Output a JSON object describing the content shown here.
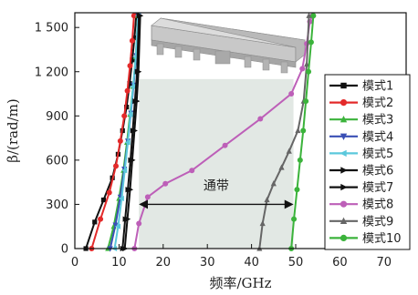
{
  "chart_data": {
    "type": "line",
    "xlabel": "频率/GHz",
    "ylabel": "β/(rad/m)",
    "xlim": [
      0,
      75
    ],
    "ylim": [
      0,
      1600
    ],
    "xticks": [
      0,
      10,
      20,
      30,
      40,
      50,
      60,
      70
    ],
    "yticks": [
      0,
      300,
      600,
      900,
      1200,
      1500
    ],
    "ytick_labels": [
      "0",
      "300",
      "600",
      "900",
      "1 200",
      "1 500"
    ],
    "grid": false,
    "legend_position": "right",
    "bandgap": {
      "x_from": 14.5,
      "x_to": 49.5,
      "y_to": 1150,
      "label": "通带",
      "color": "#e2e8e4"
    },
    "series": [
      {
        "name": "模式1",
        "color": "#111111",
        "marker": "square",
        "x": [
          2.5,
          4.5,
          6.5,
          8.5,
          9.8,
          10.8,
          11.7,
          12.4,
          13.0,
          13.5,
          13.9
        ],
        "y": [
          0,
          180,
          330,
          480,
          640,
          800,
          960,
          1120,
          1280,
          1430,
          1580
        ]
      },
      {
        "name": "模式2",
        "color": "#e32a2a",
        "marker": "circle",
        "x": [
          3.8,
          5.8,
          7.8,
          9.3,
          10.3,
          11.2,
          11.9,
          12.5,
          13.0,
          13.4
        ],
        "y": [
          0,
          200,
          380,
          560,
          730,
          900,
          1070,
          1240,
          1410,
          1580
        ]
      },
      {
        "name": "模式3",
        "color": "#3bb33b",
        "marker": "triangle-up",
        "x": [
          7.5,
          8.8,
          10.0,
          11.0,
          11.8,
          12.5,
          13.2,
          13.8,
          14.3
        ],
        "y": [
          0,
          150,
          340,
          530,
          720,
          910,
          1100,
          1300,
          1580
        ]
      },
      {
        "name": "模式4",
        "color": "#3a4fb5",
        "marker": "triangle-down",
        "x": [
          8.0,
          9.2,
          10.3,
          11.2,
          12.0,
          12.7,
          13.3,
          13.9,
          14.4
        ],
        "y": [
          0,
          160,
          350,
          540,
          730,
          920,
          1110,
          1310,
          1580
        ]
      },
      {
        "name": "模式5",
        "color": "#5bc8dc",
        "marker": "triangle-left",
        "x": [
          9.0,
          9.8,
          10.6,
          11.3,
          12.0,
          12.6,
          13.2,
          13.8,
          14.3
        ],
        "y": [
          0,
          150,
          340,
          530,
          720,
          910,
          1100,
          1300,
          1580
        ]
      },
      {
        "name": "模式6",
        "color": "#111111",
        "marker": "triangle-right",
        "x": [
          10.8,
          11.4,
          12.0,
          12.6,
          13.1,
          13.6,
          14.1,
          14.5
        ],
        "y": [
          0,
          200,
          400,
          600,
          800,
          1000,
          1200,
          1580
        ]
      },
      {
        "name": "模式7",
        "color": "#111111",
        "marker": "triangle-right",
        "x": [
          11.3,
          11.9,
          12.5,
          13.0,
          13.5,
          14.0,
          14.4,
          14.8
        ],
        "y": [
          0,
          200,
          400,
          600,
          800,
          1000,
          1200,
          1580
        ]
      },
      {
        "name": "模式8",
        "color": "#bd5fb8",
        "marker": "circle",
        "x": [
          13.5,
          14.5,
          16.5,
          20.5,
          26.5,
          34.0,
          42.0,
          49.0,
          51.5,
          52.5,
          53.2,
          53.8
        ],
        "y": [
          0,
          170,
          350,
          440,
          530,
          700,
          880,
          1050,
          1220,
          1390,
          1540,
          1580
        ]
      },
      {
        "name": "模式9",
        "color": "#666666",
        "marker": "triangle-up",
        "x": [
          41.8,
          42.5,
          43.5,
          45.0,
          46.8,
          48.5,
          50.5,
          51.8,
          52.5,
          53.0
        ],
        "y": [
          0,
          170,
          330,
          440,
          550,
          660,
          800,
          1000,
          1250,
          1580
        ]
      },
      {
        "name": "模式10",
        "color": "#3bb33b",
        "marker": "circle",
        "x": [
          49.0,
          49.6,
          50.3,
          51.0,
          51.7,
          52.3,
          52.9,
          53.5,
          54.0
        ],
        "y": [
          0,
          200,
          400,
          600,
          800,
          1000,
          1200,
          1400,
          1580
        ]
      }
    ]
  }
}
